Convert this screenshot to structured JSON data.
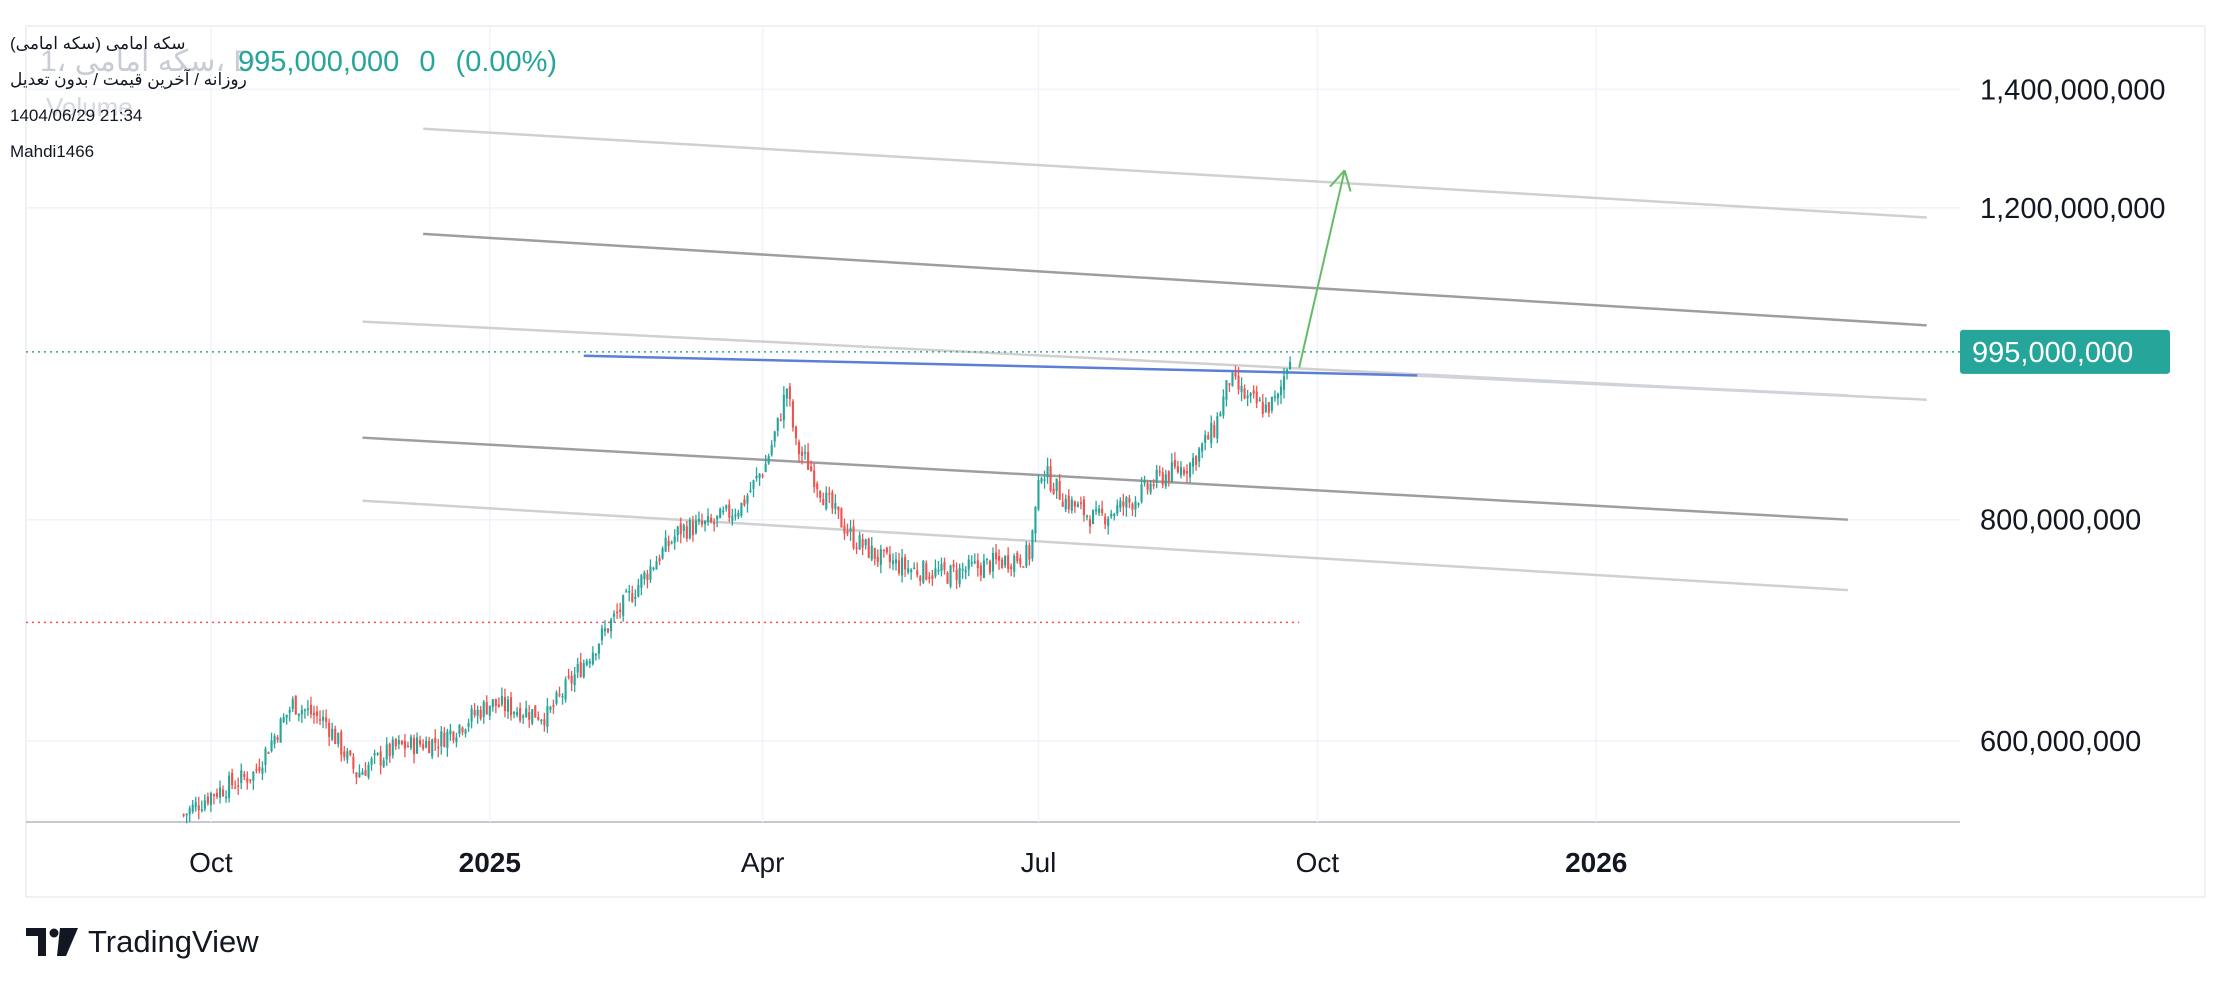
{
  "legend": {
    "symbol_name": "سکه امامی (سکه امامی)",
    "ghost_symbol": "1، سکه امامی، D",
    "ghost_volume": "Volume",
    "interval_line": "روزانه / آخرین قیمت / بدون تعدیل",
    "timestamp": "1404/06/29 21:34",
    "author": "Mahdi1466"
  },
  "price_header": {
    "price": "995,000,000",
    "change": "0",
    "change_pct": "(0.00%)"
  },
  "colors": {
    "up": "#26a69a",
    "down": "#ef5350",
    "accent_line": "#5b7fd6",
    "arrow": "#66bb6a",
    "channel_dark": "#9e9e9e",
    "channel_light": "#d0d0d0"
  },
  "branding": {
    "logo_text": "TradingView",
    "logo_icon": "tradingview-logo-icon"
  },
  "chart_data": {
    "type": "candlestick",
    "y_scale": "log",
    "ylim": [
      540000000,
      1520000000
    ],
    "y_ticks": [
      {
        "value": 1400000000,
        "label": "1,400,000,000"
      },
      {
        "value": 1200000000,
        "label": "1,200,000,000"
      },
      {
        "value": 800000000,
        "label": "800,000,000"
      },
      {
        "value": 600000000,
        "label": "600,000,000"
      }
    ],
    "last_price": {
      "value": 995000000,
      "label": "995,000,000"
    },
    "x_ticks": [
      {
        "label": "Oct",
        "date": "2024-10-01",
        "bold": false
      },
      {
        "label": "2025",
        "date": "2025-01-01",
        "bold": true
      },
      {
        "label": "Apr",
        "date": "2025-04-01",
        "bold": false
      },
      {
        "label": "Jul",
        "date": "2025-07-01",
        "bold": false
      },
      {
        "label": "Oct",
        "date": "2025-10-01",
        "bold": false
      },
      {
        "label": "2026",
        "date": "2026-01-01",
        "bold": true
      }
    ],
    "xlim": [
      "2024-08-01",
      "2026-05-01"
    ],
    "grid": true,
    "price_path": [
      {
        "date": "2024-09-22",
        "price": 545000000
      },
      {
        "date": "2024-10-01",
        "price": 560000000
      },
      {
        "date": "2024-10-15",
        "price": 575000000
      },
      {
        "date": "2024-10-28",
        "price": 630000000
      },
      {
        "date": "2024-11-08",
        "price": 615000000
      },
      {
        "date": "2024-11-18",
        "price": 575000000
      },
      {
        "date": "2024-12-01",
        "price": 595000000
      },
      {
        "date": "2024-12-15",
        "price": 600000000
      },
      {
        "date": "2025-01-01",
        "price": 630000000
      },
      {
        "date": "2025-01-20",
        "price": 620000000
      },
      {
        "date": "2025-02-10",
        "price": 700000000
      },
      {
        "date": "2025-02-25",
        "price": 760000000
      },
      {
        "date": "2025-03-05",
        "price": 790000000
      },
      {
        "date": "2025-03-15",
        "price": 795000000
      },
      {
        "date": "2025-03-25",
        "price": 815000000
      },
      {
        "date": "2025-04-02",
        "price": 860000000
      },
      {
        "date": "2025-04-06",
        "price": 905000000
      },
      {
        "date": "2025-04-09",
        "price": 950000000
      },
      {
        "date": "2025-04-12",
        "price": 880000000
      },
      {
        "date": "2025-04-16",
        "price": 860000000
      },
      {
        "date": "2025-04-22",
        "price": 820000000
      },
      {
        "date": "2025-05-01",
        "price": 780000000
      },
      {
        "date": "2025-05-10",
        "price": 760000000
      },
      {
        "date": "2025-05-20",
        "price": 750000000
      },
      {
        "date": "2025-06-01",
        "price": 745000000
      },
      {
        "date": "2025-06-15",
        "price": 755000000
      },
      {
        "date": "2025-06-28",
        "price": 765000000
      },
      {
        "date": "2025-07-02",
        "price": 855000000
      },
      {
        "date": "2025-07-10",
        "price": 820000000
      },
      {
        "date": "2025-07-20",
        "price": 800000000
      },
      {
        "date": "2025-08-01",
        "price": 820000000
      },
      {
        "date": "2025-08-10",
        "price": 845000000
      },
      {
        "date": "2025-08-20",
        "price": 860000000
      },
      {
        "date": "2025-08-28",
        "price": 900000000
      },
      {
        "date": "2025-09-02",
        "price": 960000000
      },
      {
        "date": "2025-09-08",
        "price": 935000000
      },
      {
        "date": "2025-09-14",
        "price": 925000000
      },
      {
        "date": "2025-09-18",
        "price": 935000000
      },
      {
        "date": "2025-09-22",
        "price": 995000000
      }
    ],
    "annotations": {
      "blue_trendline": [
        {
          "date": "2025-02-01",
          "price": 990000000
        },
        {
          "date": "2025-11-03",
          "price": 965000000
        }
      ],
      "blue_extension": [
        {
          "date": "2025-11-03",
          "price": 965000000
        },
        {
          "date": "2026-03-25",
          "price": 940000000
        }
      ],
      "channel_lines": [
        {
          "style": "light",
          "points": [
            {
              "date": "2024-12-10",
              "price": 1330000000
            },
            {
              "date": "2026-04-20",
              "price": 1185000000
            }
          ]
        },
        {
          "style": "dark",
          "points": [
            {
              "date": "2024-12-10",
              "price": 1160000000
            },
            {
              "date": "2026-04-20",
              "price": 1030000000
            }
          ]
        },
        {
          "style": "light",
          "points": [
            {
              "date": "2024-11-20",
              "price": 1035000000
            },
            {
              "date": "2026-04-20",
              "price": 935000000
            }
          ]
        },
        {
          "style": "dark",
          "points": [
            {
              "date": "2024-11-20",
              "price": 890000000
            },
            {
              "date": "2026-03-25",
              "price": 800000000
            }
          ]
        },
        {
          "style": "light",
          "points": [
            {
              "date": "2024-11-20",
              "price": 820000000
            },
            {
              "date": "2026-03-25",
              "price": 730000000
            }
          ]
        }
      ],
      "arrow": [
        {
          "date": "2025-09-25",
          "price": 975000000
        },
        {
          "date": "2025-10-10",
          "price": 1260000000
        }
      ],
      "red_dotted_level": {
        "price": 700000000,
        "from": "2024-08-01",
        "to": "2025-09-25"
      }
    }
  }
}
